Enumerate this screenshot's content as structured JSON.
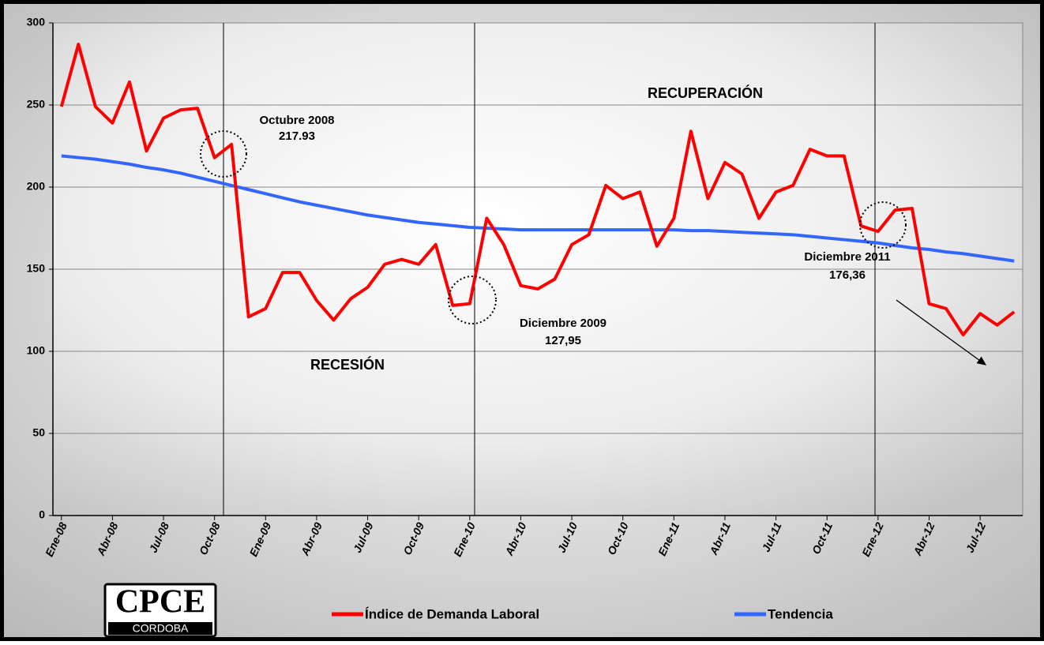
{
  "chart_data": {
    "type": "line",
    "categories": [
      "Ene-08",
      null,
      null,
      "Abr-08",
      null,
      null,
      "Jul-08",
      null,
      null,
      "Oct-08",
      null,
      null,
      "Ene-09",
      null,
      null,
      "Abr-09",
      null,
      null,
      "Jul-09",
      null,
      null,
      "Oct-09",
      null,
      null,
      "Ene-10",
      null,
      null,
      "Abr-10",
      null,
      null,
      "Jul-10",
      null,
      null,
      "Oct-10",
      null,
      null,
      "Ene-11",
      null,
      null,
      "Abr-11",
      null,
      null,
      "Jul-11",
      null,
      null,
      "Oct-11",
      null,
      null,
      "Ene-12",
      null,
      null,
      "Abr-12",
      null,
      null,
      "Jul-12",
      null,
      null
    ],
    "series": [
      {
        "name": "Índice de Demanda Laboral",
        "color": "#ff0000",
        "values": [
          249,
          287,
          249,
          239,
          264,
          222,
          242,
          247,
          248,
          217.93,
          226,
          121,
          126,
          148,
          148,
          131,
          119,
          132,
          139,
          153,
          156,
          153,
          165,
          127.95,
          129,
          181,
          165,
          140,
          138,
          144,
          165,
          171,
          201,
          193,
          197,
          164,
          181,
          234,
          193,
          215,
          208,
          181,
          197,
          201,
          223,
          219,
          219,
          176.36,
          173,
          186,
          187,
          129,
          126,
          110,
          123,
          116,
          124
        ]
      },
      {
        "name": "Tendencia",
        "color": "#3366ff",
        "values": [
          219,
          218,
          217,
          215.5,
          214,
          212,
          210.5,
          208.5,
          206,
          203.5,
          201,
          198.5,
          196,
          193.5,
          191,
          189,
          187,
          185,
          183,
          181.5,
          180,
          178.5,
          177.5,
          176.5,
          175.5,
          175,
          174.5,
          174,
          174,
          174,
          174,
          174,
          174,
          174,
          174,
          174,
          174,
          173.5,
          173.5,
          173,
          172.5,
          172,
          171.5,
          171,
          170,
          169,
          168,
          167,
          166,
          164.5,
          163,
          162,
          160.5,
          159.5,
          158,
          156.5,
          155
        ]
      }
    ],
    "ylim": [
      0,
      300
    ],
    "yticks": [
      0,
      50,
      100,
      150,
      200,
      250,
      300
    ],
    "grid": true,
    "annotations": [
      {
        "text": "Octubre 2008",
        "value": 217.93,
        "label": "217.93"
      },
      {
        "text": "Diciembre 2009",
        "value": 127.95,
        "label": "127,95"
      },
      {
        "text": "Diciembre 2011",
        "value": 176.36,
        "label": "176,36"
      },
      {
        "text": "RECUPERACIÓN"
      },
      {
        "text": "RECESIÓN"
      }
    ]
  },
  "logo": {
    "name": "CPCE",
    "subtitle": "CORDOBA"
  }
}
